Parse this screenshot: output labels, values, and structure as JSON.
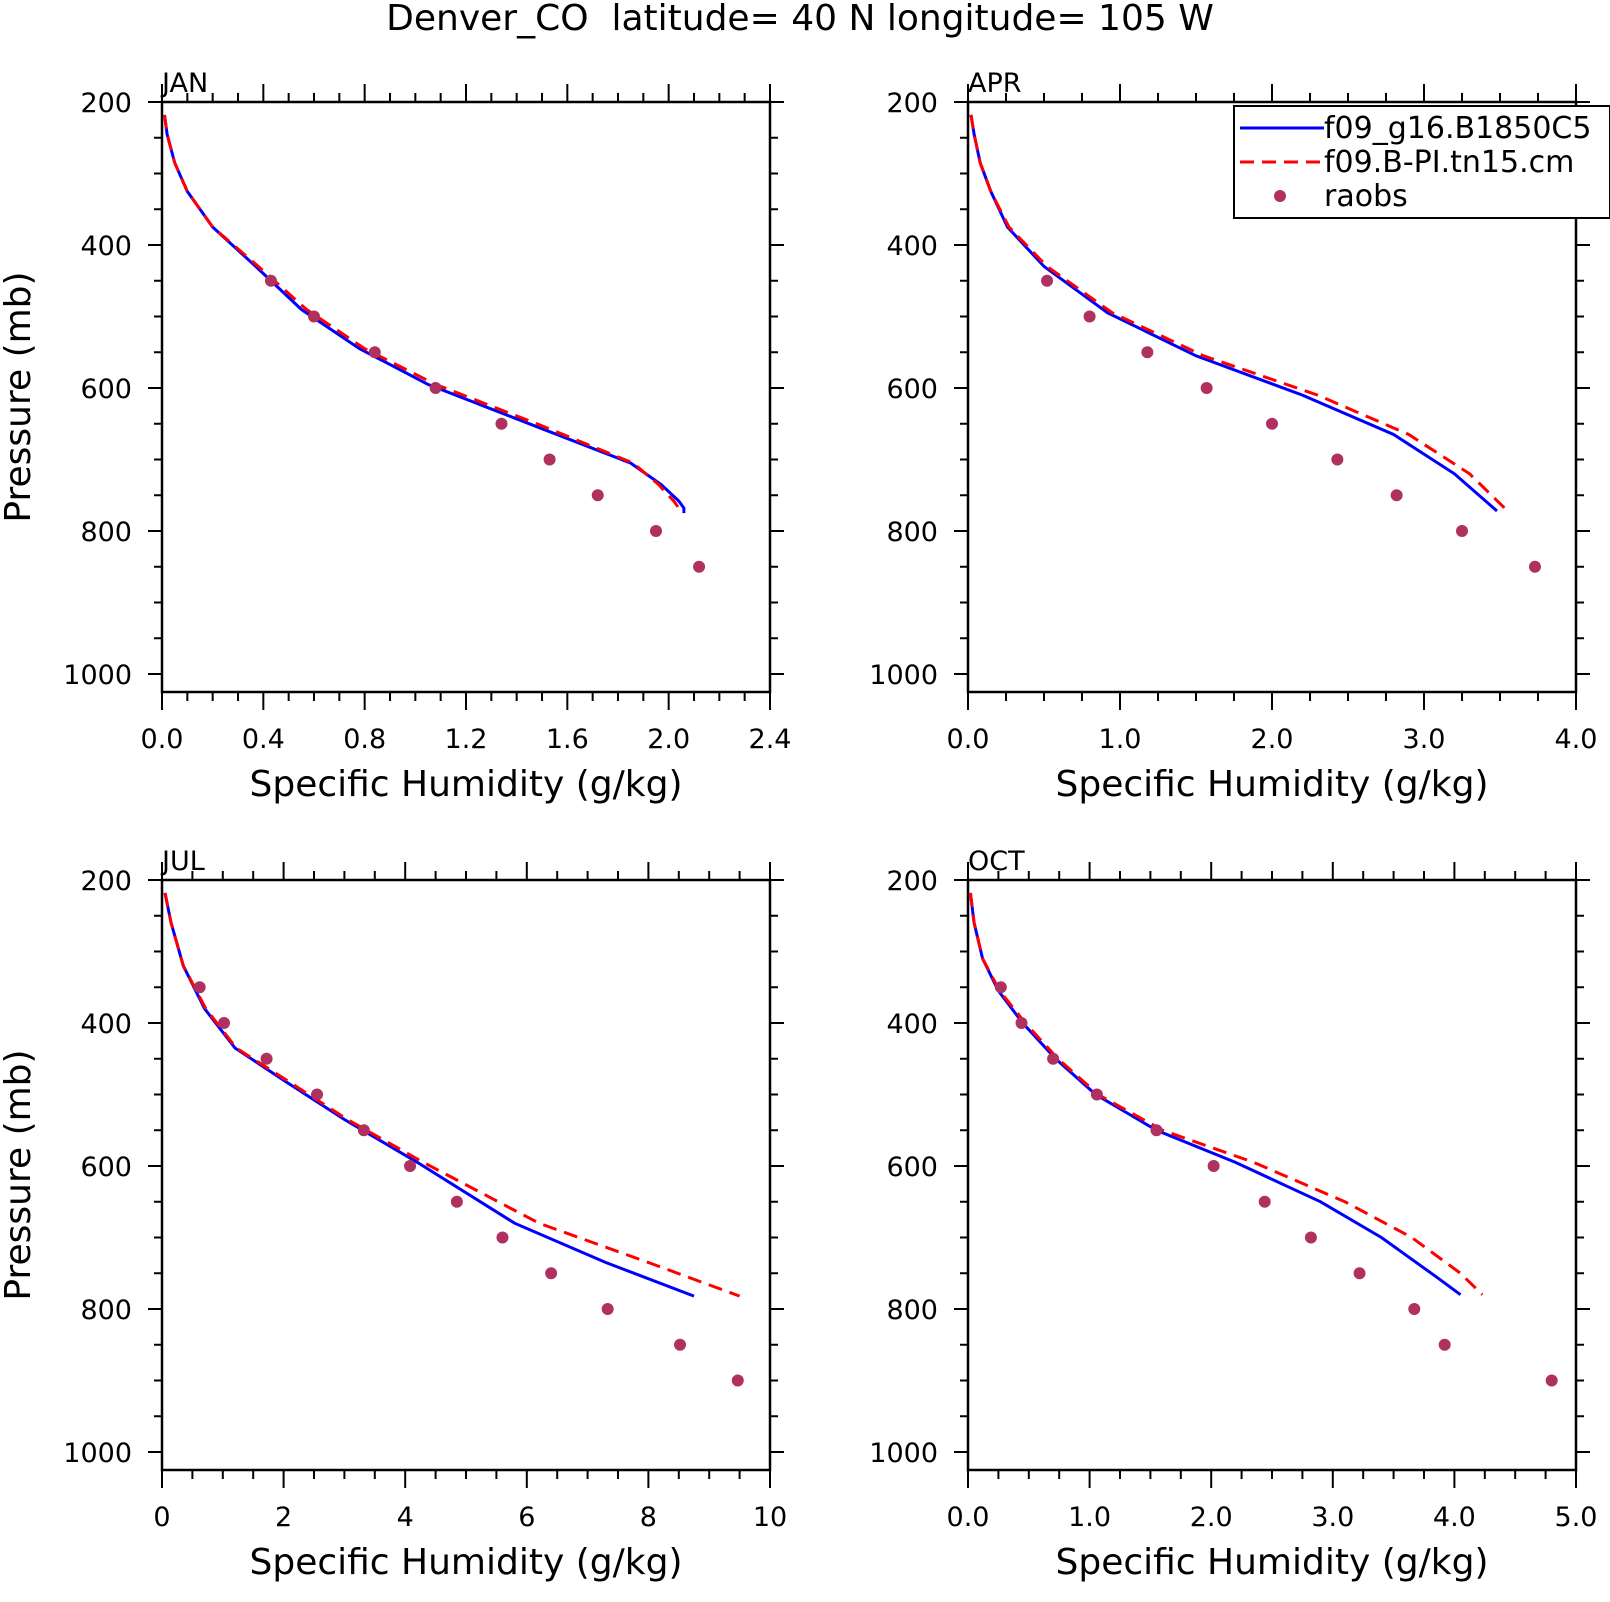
{
  "figure_title": "Denver_CO  latitude= 40 N longitude= 105 W",
  "legend": {
    "entries": [
      {
        "label": "f09_g16.B1850C5",
        "color": "#0000ff",
        "style": "solid"
      },
      {
        "label": "f09.B-PI.tn15.cm",
        "color": "#ff0000",
        "style": "dashed"
      },
      {
        "label": "raobs",
        "color": "#b03060",
        "style": "marker"
      }
    ],
    "placement": "top-right of APR panel"
  },
  "chart_data": [
    {
      "type": "line",
      "panel": "JAN",
      "xlabel": "Specific Humidity (g/kg)",
      "ylabel": "Pressure (mb)",
      "xlim": [
        0,
        2.4
      ],
      "xticks": [
        "0.0",
        "0.4",
        "0.8",
        "1.2",
        "1.6",
        "2.0",
        "2.4"
      ],
      "ylim": [
        1000,
        200
      ],
      "yticks": [
        "200",
        "400",
        "600",
        "800",
        "1000"
      ],
      "series": [
        {
          "name": "f09_g16.B1850C5",
          "color": "#0000ff",
          "style": "solid",
          "x": [
            0.01,
            0.02,
            0.05,
            0.1,
            0.2,
            0.37,
            0.55,
            0.78,
            1.05,
            1.45,
            1.85,
            1.97,
            2.04,
            2.06,
            2.06
          ],
          "y": [
            218,
            245,
            285,
            325,
            375,
            430,
            490,
            545,
            595,
            650,
            705,
            735,
            758,
            768,
            775
          ]
        },
        {
          "name": "f09.B-PI.tn15.cm",
          "color": "#ff0000",
          "style": "dashed",
          "x": [
            0.01,
            0.02,
            0.05,
            0.1,
            0.2,
            0.38,
            0.57,
            0.8,
            1.08,
            1.48,
            1.86,
            1.96,
            2.02,
            2.04,
            2.04
          ],
          "y": [
            218,
            245,
            285,
            325,
            375,
            430,
            490,
            545,
            595,
            650,
            705,
            735,
            758,
            768,
            775
          ]
        },
        {
          "name": "raobs",
          "color": "#b03060",
          "style": "marker",
          "x": [
            0.43,
            0.6,
            0.84,
            1.08,
            1.34,
            1.53,
            1.72,
            1.95,
            2.12
          ],
          "y": [
            450,
            500,
            550,
            600,
            650,
            700,
            750,
            800,
            850
          ]
        }
      ]
    },
    {
      "type": "line",
      "panel": "APR",
      "xlabel": "Specific Humidity (g/kg)",
      "ylabel": "",
      "xlim": [
        0,
        4
      ],
      "xticks": [
        "0.0",
        "1.0",
        "2.0",
        "3.0",
        "4.0"
      ],
      "ylim": [
        1000,
        200
      ],
      "yticks": [
        "200",
        "400",
        "600",
        "800",
        "1000"
      ],
      "series": [
        {
          "name": "f09_g16.B1850C5",
          "color": "#0000ff",
          "style": "solid",
          "x": [
            0.02,
            0.04,
            0.08,
            0.15,
            0.26,
            0.5,
            0.92,
            1.5,
            2.2,
            2.8,
            3.2,
            3.48
          ],
          "y": [
            218,
            245,
            285,
            325,
            375,
            430,
            495,
            555,
            610,
            665,
            720,
            772
          ]
        },
        {
          "name": "f09.B-PI.tn15.cm",
          "color": "#ff0000",
          "style": "dashed",
          "x": [
            0.02,
            0.04,
            0.08,
            0.15,
            0.27,
            0.52,
            0.95,
            1.55,
            2.3,
            2.9,
            3.3,
            3.55
          ],
          "y": [
            218,
            245,
            285,
            325,
            375,
            430,
            495,
            555,
            610,
            665,
            720,
            772
          ]
        },
        {
          "name": "raobs",
          "color": "#b03060",
          "style": "marker",
          "x": [
            0.52,
            0.8,
            1.18,
            1.57,
            2.0,
            2.43,
            2.82,
            3.25,
            3.73
          ],
          "y": [
            450,
            500,
            550,
            600,
            650,
            700,
            750,
            800,
            850
          ]
        }
      ]
    },
    {
      "type": "line",
      "panel": "JUL",
      "xlabel": "Specific Humidity (g/kg)",
      "ylabel": "Pressure (mb)",
      "xlim": [
        0,
        10
      ],
      "xticks": [
        "0",
        "2",
        "4",
        "6",
        "8",
        "10"
      ],
      "ylim": [
        1000,
        200
      ],
      "yticks": [
        "200",
        "400",
        "600",
        "800",
        "1000"
      ],
      "series": [
        {
          "name": "f09_g16.B1850C5",
          "color": "#0000ff",
          "style": "solid",
          "x": [
            0.05,
            0.15,
            0.35,
            0.7,
            1.2,
            2.0,
            3.0,
            4.2,
            5.8,
            7.3,
            8.75
          ],
          "y": [
            218,
            260,
            320,
            380,
            435,
            480,
            535,
            595,
            680,
            735,
            782
          ]
        },
        {
          "name": "f09.B-PI.tn15.cm",
          "color": "#ff0000",
          "style": "dashed",
          "x": [
            0.05,
            0.15,
            0.35,
            0.72,
            1.22,
            2.05,
            3.05,
            4.3,
            6.2,
            8.0,
            9.5
          ],
          "y": [
            218,
            260,
            320,
            380,
            435,
            480,
            535,
            595,
            680,
            735,
            782
          ]
        },
        {
          "name": "raobs",
          "color": "#b03060",
          "style": "marker",
          "x": [
            0.62,
            1.02,
            1.72,
            2.55,
            3.32,
            4.08,
            4.85,
            5.6,
            6.4,
            7.33,
            8.52,
            9.47
          ],
          "y": [
            350,
            400,
            450,
            500,
            550,
            600,
            650,
            700,
            750,
            800,
            850,
            900
          ]
        }
      ]
    },
    {
      "type": "line",
      "panel": "OCT",
      "xlabel": "Specific Humidity (g/kg)",
      "ylabel": "",
      "xlim": [
        0,
        5
      ],
      "xticks": [
        "0.0",
        "1.0",
        "2.0",
        "3.0",
        "4.0",
        "5.0"
      ],
      "ylim": [
        1000,
        200
      ],
      "yticks": [
        "200",
        "400",
        "600",
        "800",
        "1000"
      ],
      "series": [
        {
          "name": "f09_g16.B1850C5",
          "color": "#0000ff",
          "style": "solid",
          "x": [
            0.02,
            0.05,
            0.12,
            0.25,
            0.45,
            0.72,
            1.05,
            1.55,
            2.2,
            2.9,
            3.4,
            3.85,
            4.05
          ],
          "y": [
            218,
            260,
            310,
            355,
            400,
            450,
            500,
            550,
            595,
            650,
            700,
            755,
            780
          ]
        },
        {
          "name": "f09.B-PI.tn15.cm",
          "color": "#ff0000",
          "style": "dashed",
          "x": [
            0.02,
            0.05,
            0.12,
            0.26,
            0.47,
            0.74,
            1.07,
            1.6,
            2.35,
            3.1,
            3.65,
            4.05,
            4.23
          ],
          "y": [
            218,
            260,
            310,
            355,
            400,
            450,
            500,
            550,
            595,
            650,
            700,
            750,
            780
          ]
        },
        {
          "name": "raobs",
          "color": "#b03060",
          "style": "marker",
          "x": [
            0.27,
            0.44,
            0.7,
            1.06,
            1.55,
            2.02,
            2.44,
            2.82,
            3.22,
            3.67,
            3.92,
            4.8
          ],
          "y": [
            350,
            400,
            450,
            500,
            550,
            600,
            650,
            700,
            750,
            800,
            850,
            900
          ]
        }
      ]
    }
  ]
}
